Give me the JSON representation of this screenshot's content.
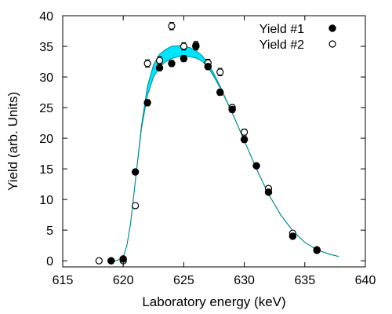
{
  "chart_data": {
    "type": "scatter",
    "xlabel": "Laboratory energy (keV)",
    "ylabel": "Yield (arb. Units)",
    "xlim": [
      615,
      640
    ],
    "ylim": [
      -1,
      40
    ],
    "xticks": [
      615,
      620,
      625,
      630,
      635,
      640
    ],
    "yticks": [
      0,
      5,
      10,
      15,
      20,
      25,
      30,
      35,
      40
    ],
    "grid": false,
    "legend_position": "top-right",
    "band_color": "#00e5ff",
    "band_edge_color": "#008b8b",
    "series": [
      {
        "name": "Yield #1",
        "marker": "filled-circle",
        "points": [
          {
            "x": 619,
            "y": 0.0,
            "err": 0.3
          },
          {
            "x": 620,
            "y": 0.3,
            "err": 0.3
          },
          {
            "x": 621,
            "y": 14.5,
            "err": 0.4
          },
          {
            "x": 622,
            "y": 25.8,
            "err": 0.5
          },
          {
            "x": 623,
            "y": 31.5,
            "err": 0.5
          },
          {
            "x": 624,
            "y": 32.2,
            "err": 0.5
          },
          {
            "x": 625,
            "y": 33.0,
            "err": 0.5
          },
          {
            "x": 626,
            "y": 35.0,
            "err": 0.6
          },
          {
            "x": 627,
            "y": 31.7,
            "err": 0.5
          },
          {
            "x": 628,
            "y": 27.5,
            "err": 0.5
          },
          {
            "x": 629,
            "y": 24.7,
            "err": 0.5
          },
          {
            "x": 630,
            "y": 19.8,
            "err": 0.5
          },
          {
            "x": 631,
            "y": 15.5,
            "err": 0.4
          },
          {
            "x": 632,
            "y": 11.2,
            "err": 0.4
          },
          {
            "x": 634,
            "y": 4.0,
            "err": 0.3
          },
          {
            "x": 636,
            "y": 1.7,
            "err": 0.3
          }
        ]
      },
      {
        "name": "Yield #2",
        "marker": "open-circle",
        "points": [
          {
            "x": 618,
            "y": 0.0,
            "err": 0.3
          },
          {
            "x": 620,
            "y": 0.0,
            "err": 0.3
          },
          {
            "x": 621,
            "y": 9.0,
            "err": 0.4
          },
          {
            "x": 622,
            "y": 32.2,
            "err": 0.6
          },
          {
            "x": 623,
            "y": 32.7,
            "err": 0.6
          },
          {
            "x": 624,
            "y": 38.3,
            "err": 0.6
          },
          {
            "x": 625,
            "y": 35.0,
            "err": 0.6
          },
          {
            "x": 626,
            "y": 35.2,
            "err": 0.6
          },
          {
            "x": 627,
            "y": 32.3,
            "err": 0.6
          },
          {
            "x": 628,
            "y": 30.8,
            "err": 0.6
          },
          {
            "x": 629,
            "y": 25.0,
            "err": 0.5
          },
          {
            "x": 630,
            "y": 21.0,
            "err": 0.5
          },
          {
            "x": 631,
            "y": 15.5,
            "err": 0.4
          },
          {
            "x": 632,
            "y": 11.8,
            "err": 0.4
          },
          {
            "x": 634,
            "y": 4.5,
            "err": 0.3
          },
          {
            "x": 636,
            "y": 1.8,
            "err": 0.3
          }
        ]
      }
    ],
    "band": {
      "x": [
        619.0,
        619.5,
        620.0,
        620.3,
        620.6,
        621.0,
        621.5,
        622.0,
        622.5,
        623.0,
        623.5,
        624.0,
        624.5,
        625.0,
        625.5,
        626.0,
        626.5,
        627.0,
        627.5,
        628.0,
        628.5,
        629.0,
        630.0,
        631.0,
        632.0,
        633.0,
        634.0,
        635.0,
        636.0,
        637.0,
        637.8
      ],
      "upper": [
        0.0,
        0.05,
        0.6,
        2.5,
        6.0,
        13.0,
        22.0,
        28.5,
        32.0,
        33.7,
        34.5,
        35.0,
        35.1,
        35.0,
        34.8,
        34.3,
        33.5,
        32.3,
        30.5,
        28.5,
        26.3,
        24.2,
        19.6,
        15.0,
        10.9,
        7.5,
        4.9,
        3.0,
        1.8,
        1.1,
        0.7
      ],
      "lower": [
        0.0,
        0.05,
        0.6,
        2.5,
        6.0,
        13.0,
        21.5,
        27.0,
        30.0,
        31.6,
        32.5,
        33.0,
        33.3,
        33.4,
        33.3,
        33.1,
        32.6,
        31.6,
        30.0,
        28.2,
        26.2,
        24.1,
        19.6,
        15.0,
        10.9,
        7.5,
        4.9,
        3.0,
        1.8,
        1.1,
        0.7
      ]
    }
  }
}
